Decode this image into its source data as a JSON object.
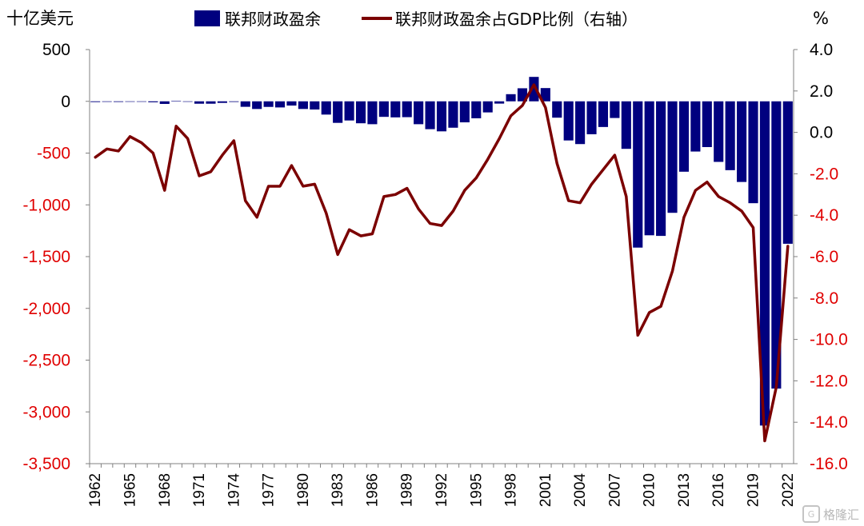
{
  "chart_data": {
    "type": "bar+line",
    "left_unit": "十亿美元",
    "right_unit": "%",
    "legend": {
      "bar_label": "联邦财政盈余",
      "line_label": "联邦财政盈余占GDP比例（右轴）"
    },
    "colors": {
      "bar": "#00007f",
      "line": "#7b0000",
      "negative_tick": "#e00000"
    },
    "left_axis": {
      "min": -3500,
      "max": 500,
      "step": 500,
      "tick_labels": [
        "500",
        "0",
        "-500",
        "-1,000",
        "-1,500",
        "-2,000",
        "-2,500",
        "-3,000",
        "-3,500"
      ]
    },
    "right_axis": {
      "min": -16,
      "max": 4,
      "step": 2,
      "tick_labels": [
        "4.0",
        "2.0",
        "0.0",
        "-2.0",
        "-4.0",
        "-6.0",
        "-8.0",
        "-10.0",
        "-12.0",
        "-14.0",
        "-16.0"
      ]
    },
    "x_tick_labels": [
      "1962",
      "1965",
      "1968",
      "1971",
      "1974",
      "1977",
      "1980",
      "1983",
      "1986",
      "1989",
      "1992",
      "1995",
      "1998",
      "2001",
      "2004",
      "2007",
      "2010",
      "2013",
      "2016",
      "2019",
      "2022"
    ],
    "years": [
      1962,
      1963,
      1964,
      1965,
      1966,
      1967,
      1968,
      1969,
      1970,
      1971,
      1972,
      1973,
      1974,
      1975,
      1976,
      1977,
      1978,
      1979,
      1980,
      1981,
      1982,
      1983,
      1984,
      1985,
      1986,
      1987,
      1988,
      1989,
      1990,
      1991,
      1992,
      1993,
      1994,
      1995,
      1996,
      1997,
      1998,
      1999,
      2000,
      2001,
      2002,
      2003,
      2004,
      2005,
      2006,
      2007,
      2008,
      2009,
      2010,
      2011,
      2012,
      2013,
      2014,
      2015,
      2016,
      2017,
      2018,
      2019,
      2020,
      2021,
      2022
    ],
    "series": [
      {
        "name": "联邦财政盈余",
        "type": "bar",
        "values": [
          -7,
          -5,
          -6,
          -1,
          -4,
          -9,
          -25,
          3,
          -3,
          -23,
          -23,
          -15,
          -6,
          -53,
          -74,
          -54,
          -59,
          -41,
          -74,
          -79,
          -128,
          -208,
          -185,
          -212,
          -221,
          -150,
          -155,
          -153,
          -221,
          -269,
          -290,
          -255,
          -203,
          -164,
          -107,
          -22,
          69,
          126,
          236,
          128,
          -158,
          -378,
          -413,
          -318,
          -248,
          -161,
          -459,
          -1413,
          -1294,
          -1300,
          -1077,
          -680,
          -485,
          -442,
          -585,
          -665,
          -779,
          -984,
          -3132,
          -2775,
          -1376
        ]
      },
      {
        "name": "联邦财政盈余占GDP比例（右轴）",
        "type": "line",
        "values": [
          -1.2,
          -0.8,
          -0.9,
          -0.2,
          -0.5,
          -1.0,
          -2.8,
          0.3,
          -0.3,
          -2.1,
          -1.9,
          -1.1,
          -0.4,
          -3.3,
          -4.1,
          -2.6,
          -2.6,
          -1.6,
          -2.6,
          -2.5,
          -3.9,
          -5.9,
          -4.7,
          -5.0,
          -4.9,
          -3.1,
          -3.0,
          -2.7,
          -3.7,
          -4.4,
          -4.5,
          -3.8,
          -2.8,
          -2.2,
          -1.3,
          -0.3,
          0.8,
          1.3,
          2.3,
          1.2,
          -1.5,
          -3.3,
          -3.4,
          -2.5,
          -1.8,
          -1.1,
          -3.1,
          -9.8,
          -8.7,
          -8.4,
          -6.7,
          -4.1,
          -2.8,
          -2.4,
          -3.1,
          -3.4,
          -3.8,
          -4.6,
          -14.9,
          -12.3,
          -5.5
        ]
      }
    ]
  },
  "watermark_text": "格隆汇",
  "watermark_icon": "G"
}
